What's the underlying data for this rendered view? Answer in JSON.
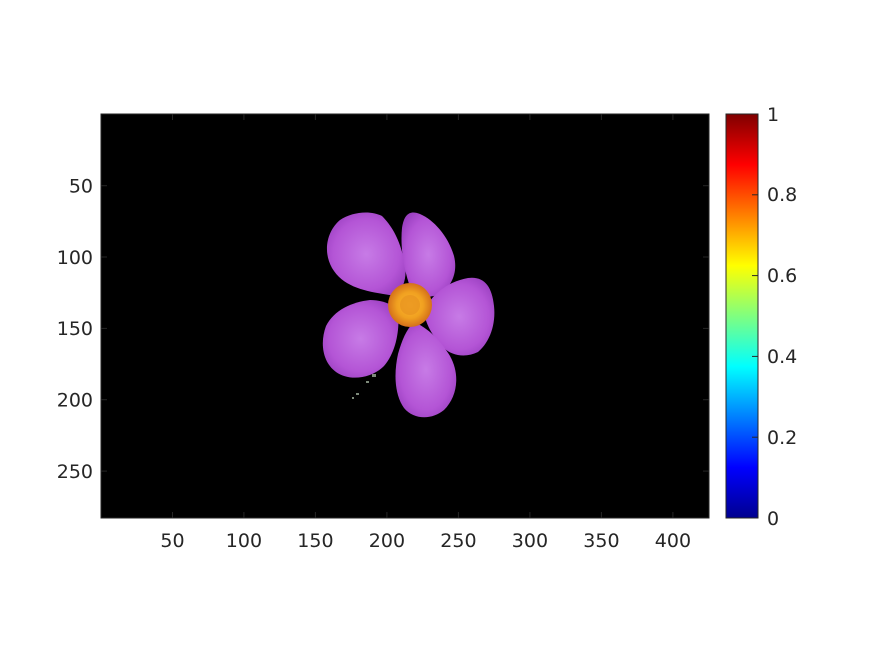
{
  "figure": {
    "background": "#ffffff",
    "image_description_colors": {
      "background": "#000000",
      "petal": "#b455d6",
      "petal_light": "#c77be6",
      "petal_dark": "#8a35b0",
      "center": "#f0a020",
      "center_dark": "#d4701a"
    }
  },
  "image_axes": {
    "x_ticks": [
      "50",
      "100",
      "150",
      "200",
      "250",
      "300",
      "350",
      "400"
    ],
    "y_ticks": [
      "50",
      "100",
      "150",
      "200",
      "250"
    ],
    "x_range": [
      0.5,
      425.5
    ],
    "y_range": [
      0.5,
      283.5
    ]
  },
  "colorbar": {
    "colormap": "jet",
    "range": [
      0,
      1
    ],
    "ticks": [
      "0",
      "0.2",
      "0.4",
      "0.6",
      "0.8",
      "1"
    ]
  }
}
